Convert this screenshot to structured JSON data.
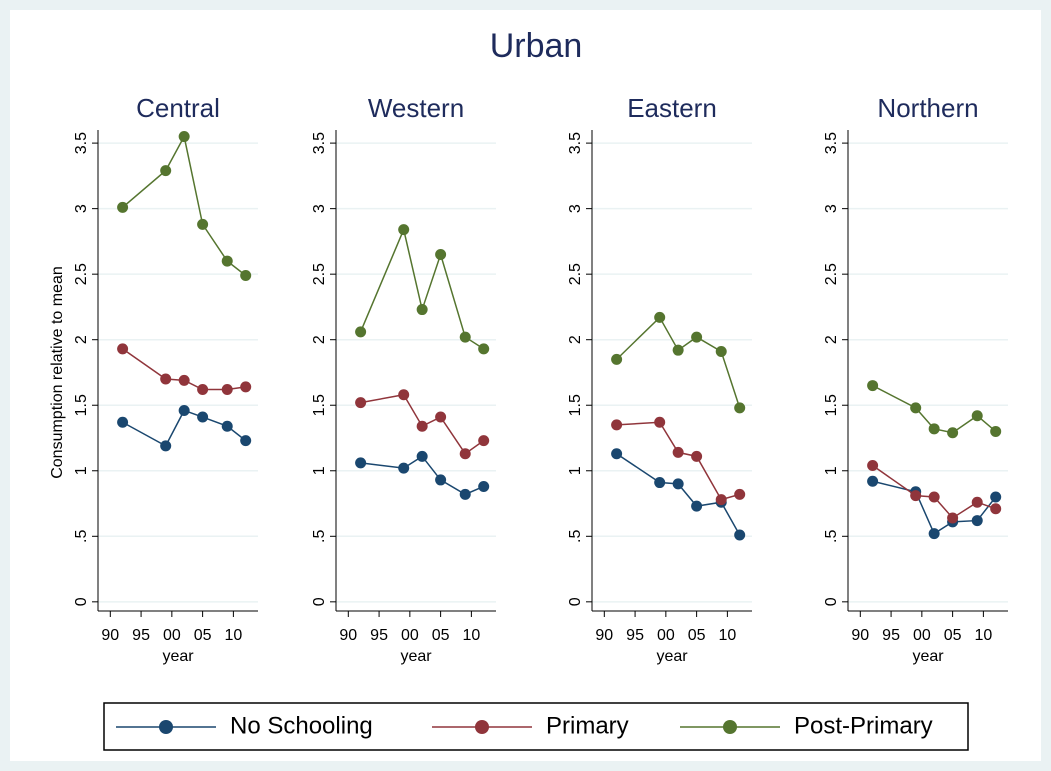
{
  "title": "Urban",
  "legend_position": "bottom",
  "chart_data": [
    {
      "type": "line",
      "title": "Central",
      "y_label": "Consumption relative to mean",
      "x_label": "year",
      "x": [
        1992,
        1999,
        2002,
        2005,
        2009,
        2012
      ],
      "xlim": [
        1988,
        2014
      ],
      "xticks": [
        {
          "value": 1990,
          "label": "90"
        },
        {
          "value": 1995,
          "label": "95"
        },
        {
          "value": 2000,
          "label": "00"
        },
        {
          "value": 2005,
          "label": "05"
        },
        {
          "value": 2010,
          "label": "10"
        }
      ],
      "ylim": [
        -0.07,
        3.6
      ],
      "yticks": [
        0,
        {
          "value": 0.5,
          "label": ".5"
        },
        1,
        1.5,
        2,
        2.5,
        3,
        3.5
      ],
      "grid": true,
      "series": [
        {
          "name": "No Schooling",
          "color": "#1a476f",
          "values": [
            1.37,
            1.19,
            1.46,
            1.41,
            1.34,
            1.23
          ]
        },
        {
          "name": "Primary",
          "color": "#90353b",
          "values": [
            1.93,
            1.7,
            1.69,
            1.62,
            1.62,
            1.64
          ]
        },
        {
          "name": "Post-Primary",
          "color": "#55752f",
          "values": [
            3.01,
            3.29,
            3.55,
            2.88,
            2.6,
            2.49
          ]
        }
      ]
    },
    {
      "type": "line",
      "title": "Western",
      "x_label": "year",
      "x": [
        1992,
        1999,
        2002,
        2005,
        2009,
        2012
      ],
      "xlim": [
        1988,
        2014
      ],
      "xticks": [
        {
          "value": 1990,
          "label": "90"
        },
        {
          "value": 1995,
          "label": "95"
        },
        {
          "value": 2000,
          "label": "00"
        },
        {
          "value": 2005,
          "label": "05"
        },
        {
          "value": 2010,
          "label": "10"
        }
      ],
      "ylim": [
        -0.07,
        3.6
      ],
      "yticks": [
        0,
        {
          "value": 0.5,
          "label": ".5"
        },
        1,
        1.5,
        2,
        2.5,
        3,
        3.5
      ],
      "grid": true,
      "series": [
        {
          "name": "No Schooling",
          "color": "#1a476f",
          "values": [
            1.06,
            1.02,
            1.11,
            0.93,
            0.82,
            0.88
          ]
        },
        {
          "name": "Primary",
          "color": "#90353b",
          "values": [
            1.52,
            1.58,
            1.34,
            1.41,
            1.13,
            1.23
          ]
        },
        {
          "name": "Post-Primary",
          "color": "#55752f",
          "values": [
            2.06,
            2.84,
            2.23,
            2.65,
            2.02,
            1.93
          ]
        }
      ]
    },
    {
      "type": "line",
      "title": "Eastern",
      "x_label": "year",
      "x": [
        1992,
        1999,
        2002,
        2005,
        2009,
        2012
      ],
      "xlim": [
        1988,
        2014
      ],
      "xticks": [
        {
          "value": 1990,
          "label": "90"
        },
        {
          "value": 1995,
          "label": "95"
        },
        {
          "value": 2000,
          "label": "00"
        },
        {
          "value": 2005,
          "label": "05"
        },
        {
          "value": 2010,
          "label": "10"
        }
      ],
      "ylim": [
        -0.07,
        3.6
      ],
      "yticks": [
        0,
        {
          "value": 0.5,
          "label": ".5"
        },
        1,
        1.5,
        2,
        2.5,
        3,
        3.5
      ],
      "grid": true,
      "series": [
        {
          "name": "No Schooling",
          "color": "#1a476f",
          "values": [
            1.13,
            0.91,
            0.9,
            0.73,
            0.76,
            0.51
          ]
        },
        {
          "name": "Primary",
          "color": "#90353b",
          "values": [
            1.35,
            1.37,
            1.14,
            1.11,
            0.78,
            0.82
          ]
        },
        {
          "name": "Post-Primary",
          "color": "#55752f",
          "values": [
            1.85,
            2.17,
            1.92,
            2.02,
            1.91,
            1.48
          ]
        }
      ]
    },
    {
      "type": "line",
      "title": "Northern",
      "x_label": "year",
      "x": [
        1992,
        1999,
        2002,
        2005,
        2009,
        2012
      ],
      "xlim": [
        1988,
        2014
      ],
      "xticks": [
        {
          "value": 1990,
          "label": "90"
        },
        {
          "value": 1995,
          "label": "95"
        },
        {
          "value": 2000,
          "label": "00"
        },
        {
          "value": 2005,
          "label": "05"
        },
        {
          "value": 2010,
          "label": "10"
        }
      ],
      "ylim": [
        -0.07,
        3.6
      ],
      "yticks": [
        0,
        {
          "value": 0.5,
          "label": ".5"
        },
        1,
        1.5,
        2,
        2.5,
        3,
        3.5
      ],
      "grid": true,
      "series": [
        {
          "name": "No Schooling",
          "color": "#1a476f",
          "values": [
            0.92,
            0.84,
            0.52,
            0.61,
            0.62,
            0.8
          ]
        },
        {
          "name": "Primary",
          "color": "#90353b",
          "values": [
            1.04,
            0.81,
            0.8,
            0.64,
            0.76,
            0.71
          ]
        },
        {
          "name": "Post-Primary",
          "color": "#55752f",
          "values": [
            1.65,
            1.48,
            1.32,
            1.29,
            1.42,
            1.3
          ]
        }
      ]
    }
  ]
}
